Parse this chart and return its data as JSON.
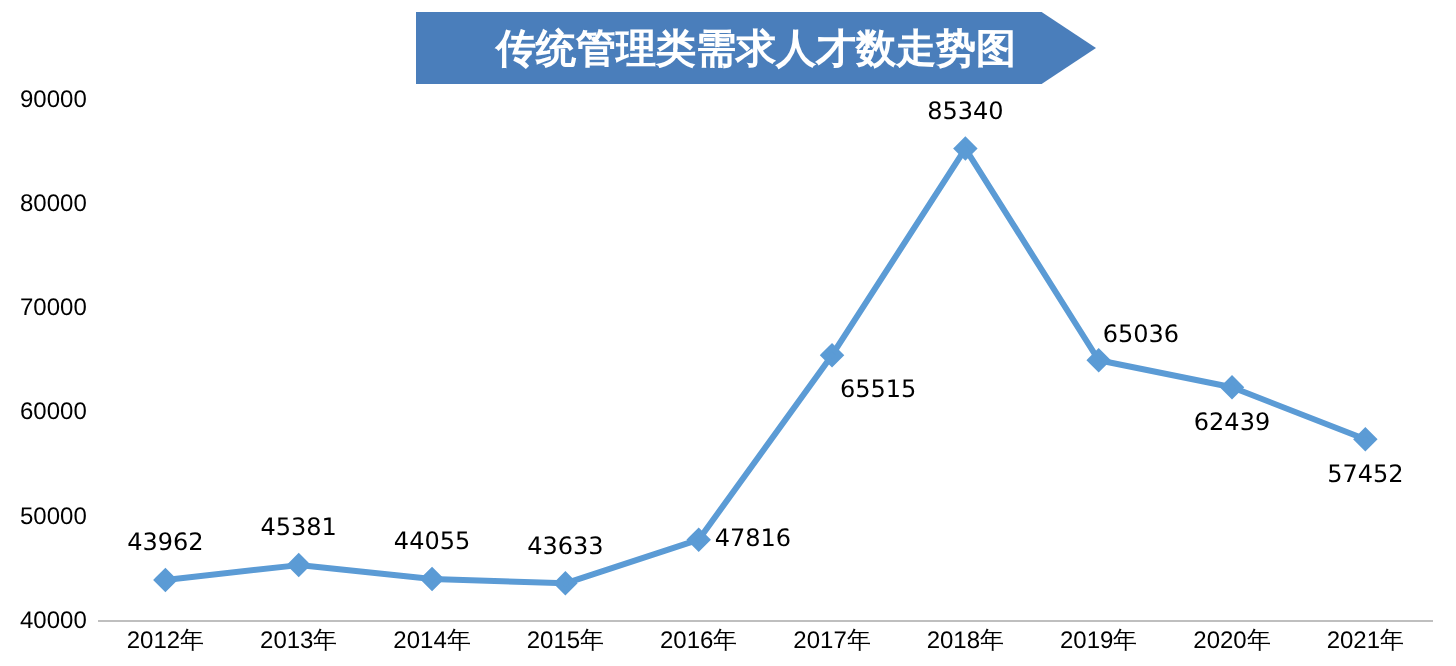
{
  "chart_data": {
    "type": "line",
    "title": "传统管理类需求人才数走势图",
    "categories": [
      "2012年",
      "2013年",
      "2014年",
      "2015年",
      "2016年",
      "2017年",
      "2018年",
      "2019年",
      "2020年",
      "2021年"
    ],
    "series": [
      {
        "color": "#5b9bd5",
        "values": [
          43962,
          45381,
          44055,
          43633,
          47816,
          65515,
          85340,
          65036,
          62439,
          57452
        ]
      }
    ],
    "ylim": [
      40000,
      90000
    ],
    "yticks": [
      40000,
      50000,
      60000,
      70000,
      80000,
      90000
    ],
    "grid": false,
    "legend": false,
    "marker": "diamond",
    "line_style": "solid",
    "data_labels": true
  }
}
